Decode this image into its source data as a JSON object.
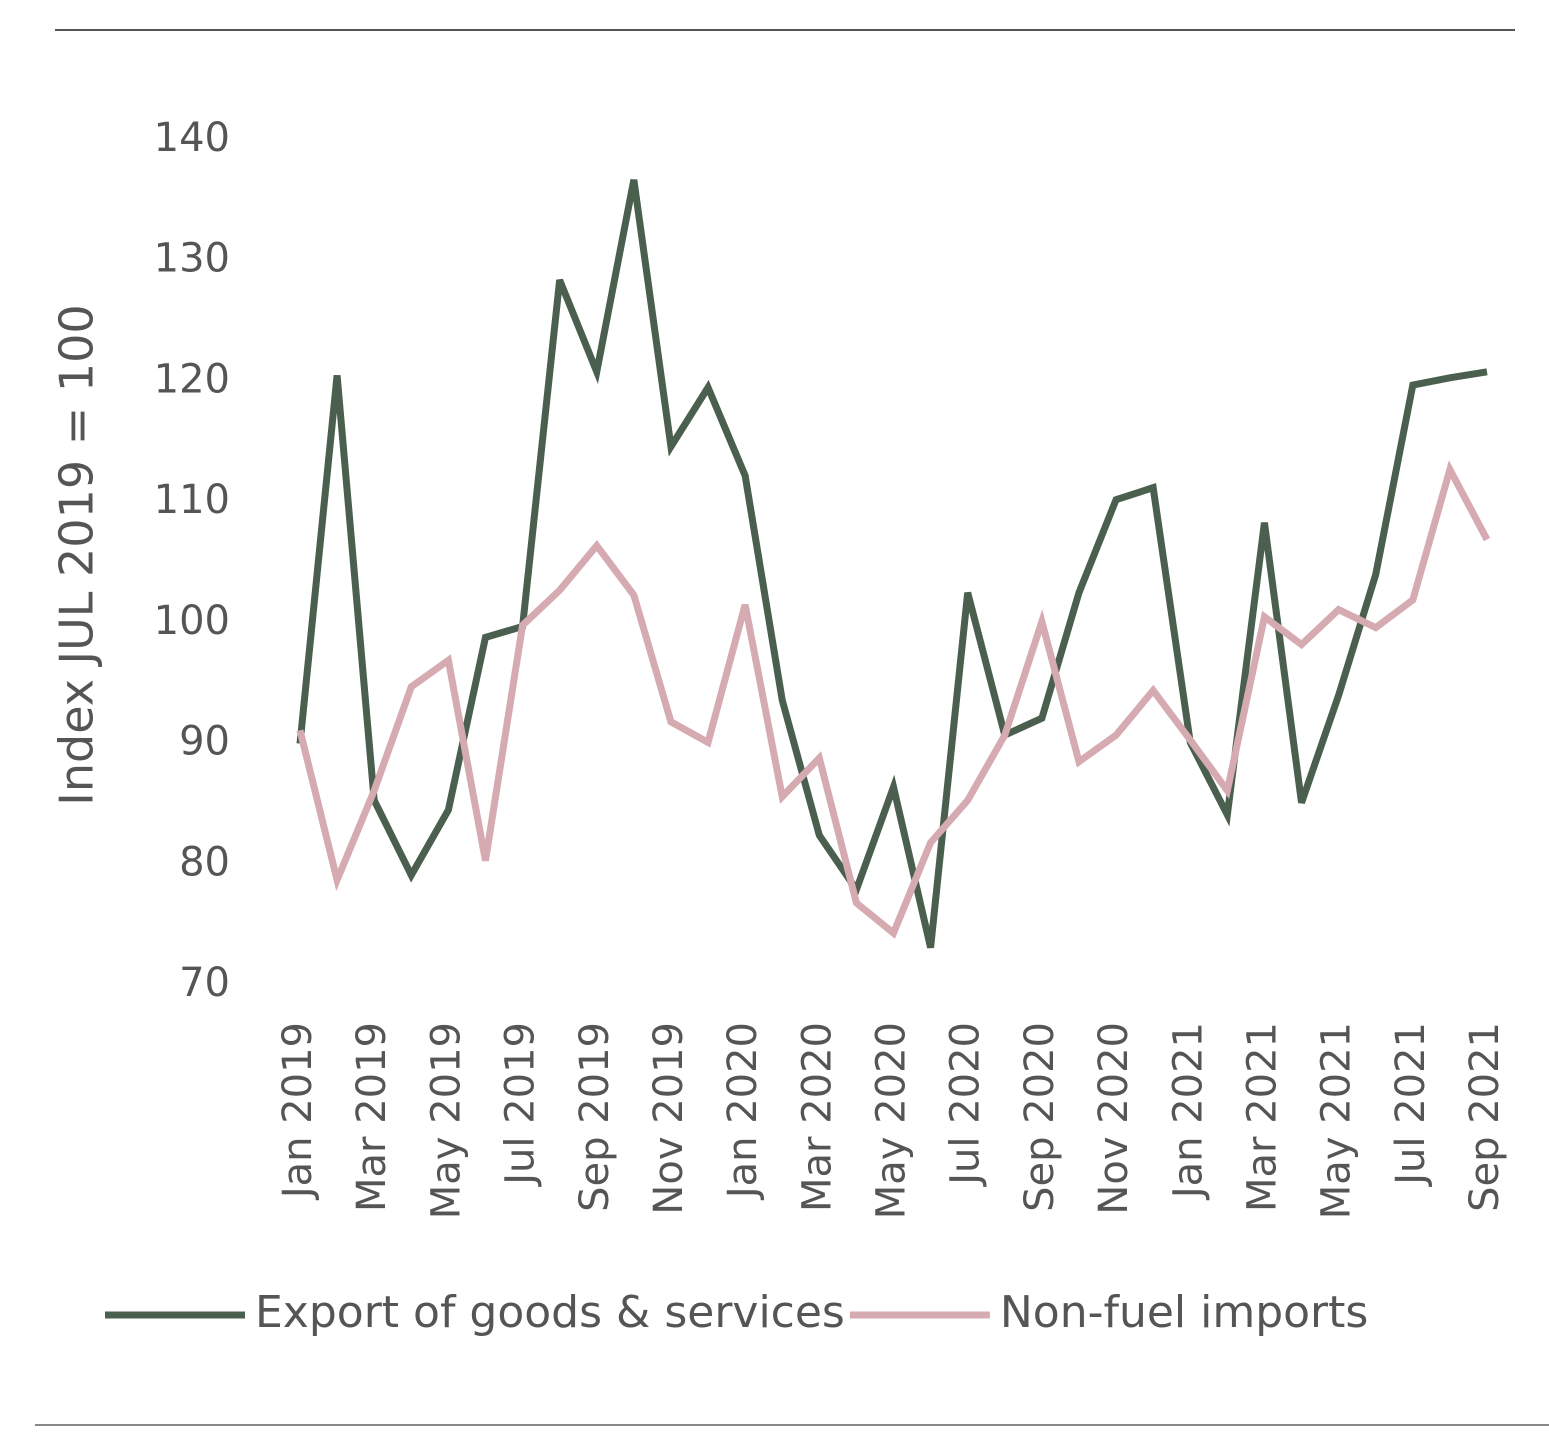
{
  "chart_data": {
    "type": "line",
    "y_label": "Index JUL 2019 = 100",
    "categories": [
      "Jan 2019",
      null,
      "Mar 2019",
      null,
      "May 2019",
      null,
      "Jul 2019",
      null,
      "Sep 2019",
      null,
      "Nov 2019",
      null,
      "Jan 2020",
      null,
      "Mar 2020",
      null,
      "May 2020",
      null,
      "Jul 2020",
      null,
      "Sep 2020",
      null,
      "Nov 2020",
      null,
      "Jan 2021",
      null,
      "Mar 2021",
      null,
      "May 2021",
      null,
      "Jul 2021",
      null,
      "Sep 2021"
    ],
    "series": [
      {
        "name": "Export of goods & services",
        "color": "#4b5f4f",
        "values": [
          90,
          120.5,
          85.3,
          79.1,
          84.5,
          98.8,
          99.7,
          128.4,
          120.8,
          136.7,
          114.6,
          119.5,
          112.2,
          93.6,
          82.4,
          77.9,
          86.4,
          73.1,
          102.5,
          90.7,
          92.1,
          102.5,
          110.2,
          111.2,
          90.1,
          84.1,
          108.3,
          85.1,
          94,
          104,
          119.7,
          120.3,
          120.8
        ]
      },
      {
        "name": "Non-fuel imports",
        "color": "#d5aab1",
        "values": [
          91.1,
          78.7,
          86.1,
          94.7,
          96.9,
          80.3,
          99.8,
          102.7,
          106.4,
          102.3,
          91.8,
          90.1,
          101.5,
          85.6,
          88.8,
          76.8,
          74.3,
          81.8,
          85.3,
          90.7,
          100.1,
          88.5,
          90.7,
          94.4,
          90.3,
          86.1,
          100.5,
          98.2,
          101.1,
          99.6,
          101.9,
          112.7,
          106.9
        ]
      }
    ],
    "ylim": [
      70,
      140
    ],
    "yticks": [
      70,
      80,
      90,
      100,
      110,
      120,
      130,
      140
    ],
    "legend": "bottom"
  }
}
